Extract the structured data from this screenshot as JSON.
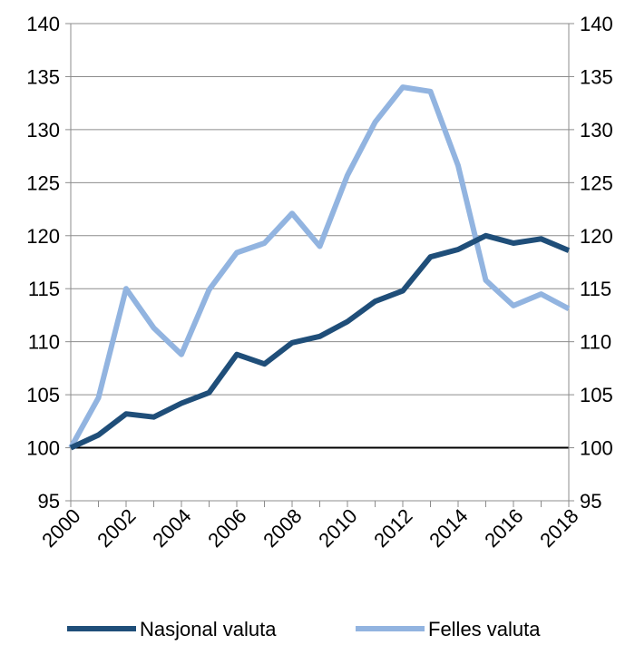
{
  "chart_data": {
    "type": "line",
    "x": [
      2000,
      2001,
      2002,
      2003,
      2004,
      2005,
      2006,
      2007,
      2008,
      2009,
      2010,
      2011,
      2012,
      2013,
      2014,
      2015,
      2016,
      2017,
      2018
    ],
    "x_tick_labels": [
      "2000",
      "2002",
      "2004",
      "2006",
      "2008",
      "2010",
      "2012",
      "2014",
      "2016",
      "2018"
    ],
    "y_tick_labels": [
      "95",
      "100",
      "105",
      "110",
      "115",
      "120",
      "125",
      "130",
      "135",
      "140"
    ],
    "ylim": [
      95,
      140
    ],
    "y_ticks_both_sides": true,
    "grid": "horizontal",
    "reference_line": 100,
    "legend_position": "bottom",
    "series": [
      {
        "name": "Nasjonal valuta",
        "color": "#1f4e79",
        "values": [
          100.0,
          101.2,
          103.2,
          102.9,
          104.2,
          105.2,
          108.8,
          107.9,
          109.9,
          110.5,
          111.9,
          113.8,
          114.8,
          118.0,
          118.7,
          120.0,
          119.3,
          119.7,
          118.6
        ]
      },
      {
        "name": "Felles valuta",
        "color": "#92b4e0",
        "values": [
          100.0,
          104.7,
          115.0,
          111.3,
          108.8,
          114.9,
          118.4,
          119.3,
          122.1,
          119.0,
          125.7,
          130.7,
          134.0,
          133.6,
          126.6,
          115.8,
          113.4,
          114.5,
          113.1
        ]
      }
    ]
  }
}
